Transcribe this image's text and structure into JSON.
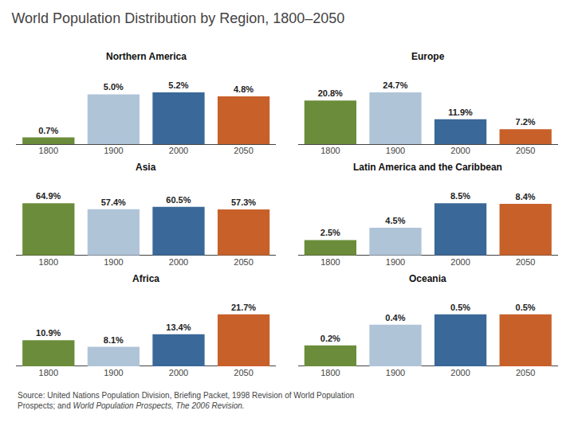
{
  "title": "World Population Distribution by Region, 1800–2050",
  "annotations": [
    "Source: United Nations Population Division, Briefing Packet, 1998 Revision of World Population",
    "Prospects; and ",
    "World Population Prospects, The 2006 Revision."
  ],
  "chart_data": [
    {
      "type": "bar",
      "title": "Northern America",
      "categories": [
        "1800",
        "1900",
        "2000",
        "2050"
      ],
      "values": [
        0.7,
        5.0,
        5.2,
        4.8
      ],
      "value_labels": [
        "0.7%",
        "5.0%",
        "5.2%",
        "4.8%"
      ],
      "colors": [
        "#6b8c3a",
        "#b0c4d8",
        "#3a6898",
        "#c8602a"
      ],
      "ylim": [
        0,
        8.06
      ],
      "data_labels": true,
      "tick_labels": "x",
      "grid": false
    },
    {
      "type": "bar",
      "title": "Europe",
      "categories": [
        "1800",
        "1900",
        "2000",
        "2050"
      ],
      "values": [
        20.8,
        24.7,
        11.9,
        7.2
      ],
      "value_labels": [
        "20.8%",
        "24.7%",
        "11.9%",
        "7.2%"
      ],
      "colors": [
        "#6b8c3a",
        "#b0c4d8",
        "#3a6898",
        "#c8602a"
      ],
      "ylim": [
        0,
        38.285
      ],
      "data_labels": true,
      "tick_labels": "x",
      "grid": false
    },
    {
      "type": "bar",
      "title": "Asia",
      "categories": [
        "1800",
        "1900",
        "2000",
        "2050"
      ],
      "values": [
        64.9,
        57.4,
        60.5,
        57.3
      ],
      "value_labels": [
        "64.9%",
        "57.4%",
        "60.5%",
        "57.3%"
      ],
      "colors": [
        "#6b8c3a",
        "#b0c4d8",
        "#3a6898",
        "#c8602a"
      ],
      "ylim": [
        0,
        100.595
      ],
      "data_labels": true,
      "tick_labels": "x",
      "grid": false
    },
    {
      "type": "bar",
      "title": "Latin America and the Caribbean",
      "categories": [
        "1800",
        "1900",
        "2000",
        "2050"
      ],
      "values": [
        2.5,
        4.5,
        8.5,
        8.4
      ],
      "value_labels": [
        "2.5%",
        "4.5%",
        "8.5%",
        "8.4%"
      ],
      "colors": [
        "#6b8c3a",
        "#b0c4d8",
        "#3a6898",
        "#c8602a"
      ],
      "ylim": [
        0,
        13.175
      ],
      "data_labels": true,
      "tick_labels": "x",
      "grid": false
    },
    {
      "type": "bar",
      "title": "Africa",
      "categories": [
        "1800",
        "1900",
        "2000",
        "2050"
      ],
      "values": [
        10.9,
        8.1,
        13.4,
        21.7
      ],
      "value_labels": [
        "10.9%",
        "8.1%",
        "13.4%",
        "21.7%"
      ],
      "colors": [
        "#6b8c3a",
        "#b0c4d8",
        "#3a6898",
        "#c8602a"
      ],
      "ylim": [
        0,
        33.635
      ],
      "data_labels": true,
      "tick_labels": "x",
      "grid": false
    },
    {
      "type": "bar",
      "title": "Oceania",
      "categories": [
        "1800",
        "1900",
        "2000",
        "2050"
      ],
      "values": [
        0.2,
        0.4,
        0.5,
        0.5
      ],
      "value_labels": [
        "0.2%",
        "0.4%",
        "0.5%",
        "0.5%"
      ],
      "colors": [
        "#6b8c3a",
        "#b0c4d8",
        "#3a6898",
        "#c8602a"
      ],
      "ylim": [
        0,
        0.775
      ],
      "data_labels": true,
      "tick_labels": "x",
      "grid": false
    }
  ]
}
